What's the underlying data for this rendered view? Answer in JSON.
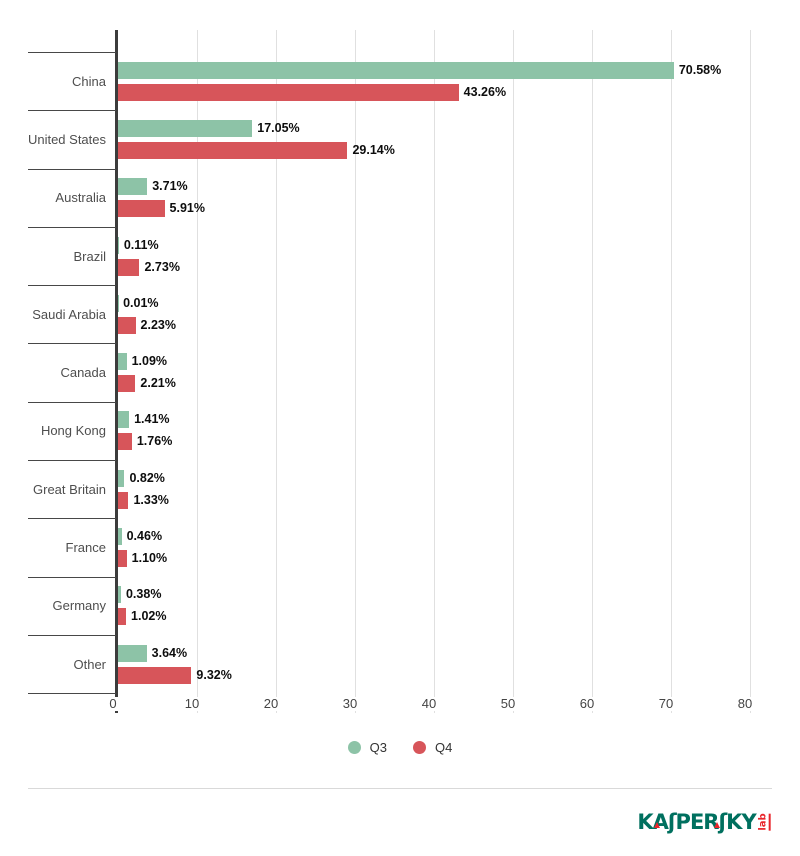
{
  "chart_data": {
    "type": "bar",
    "orientation": "horizontal",
    "title": "",
    "xlabel": "",
    "ylabel": "",
    "xlim": [
      0,
      80
    ],
    "x_ticks": [
      "0",
      "10",
      "20",
      "30",
      "40",
      "50",
      "60",
      "70",
      "80"
    ],
    "grid": true,
    "legend_position": "bottom",
    "value_suffix": "%",
    "categories": [
      "China",
      "United States",
      "Australia",
      "Brazil",
      "Saudi Arabia",
      "Canada",
      "Hong Kong",
      "Great Britain",
      "France",
      "Germany",
      "Other"
    ],
    "series": [
      {
        "name": "Q3",
        "color": "#8DC3A7",
        "values": [
          70.58,
          17.05,
          3.71,
          0.11,
          0.01,
          1.09,
          1.41,
          0.82,
          0.46,
          0.38,
          3.64
        ],
        "labels": [
          "70.58%",
          "17.05%",
          "3.71%",
          "0.11%",
          "0.01%",
          "1.09%",
          "1.41%",
          "0.82%",
          "0.46%",
          "0.38%",
          "3.64%"
        ]
      },
      {
        "name": "Q4",
        "color": "#D7555A",
        "values": [
          43.26,
          29.14,
          5.91,
          2.73,
          2.23,
          2.21,
          1.76,
          1.33,
          1.1,
          1.02,
          9.32
        ],
        "labels": [
          "43.26%",
          "29.14%",
          "5.91%",
          "2.73%",
          "2.23%",
          "2.21%",
          "1.76%",
          "1.33%",
          "1.10%",
          "1.02%",
          "9.32%"
        ]
      }
    ]
  },
  "legend": {
    "items": [
      {
        "label": "Q3",
        "color": "#8DC3A7"
      },
      {
        "label": "Q4",
        "color": "#D7555A"
      }
    ]
  },
  "colors": {
    "q3_bar": "#8DC3A7",
    "q4_bar": "#D7555A",
    "axis": "#3C3C3C",
    "gridline": "#E0E0E0",
    "logo_green": "#00705F",
    "logo_red": "#E9252B"
  },
  "footer": {
    "logo_text": "KAʃPERʃKY",
    "logo_sub": "lab"
  }
}
